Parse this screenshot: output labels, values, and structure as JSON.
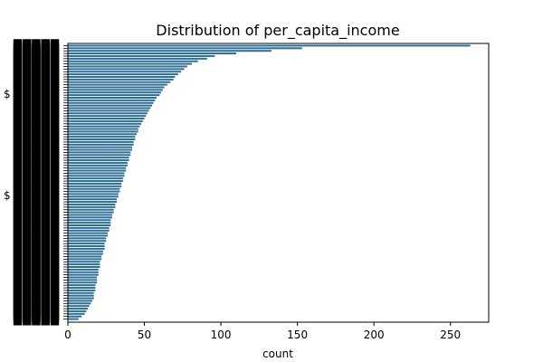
{
  "chart_data": {
    "type": "bar",
    "orientation": "horizontal",
    "title": "Distribution of per_capita_income",
    "xlabel": "count",
    "ylabel": "",
    "xlim": [
      0,
      275
    ],
    "x_ticks": [
      0,
      50,
      100,
      150,
      200,
      250
    ],
    "y_visible_labels": [
      "$",
      "$"
    ],
    "bar_color": "#2e6f96",
    "grid": false,
    "legend": "none",
    "values": [
      263,
      153,
      133,
      110,
      96,
      91,
      85,
      81,
      78,
      76,
      74,
      72,
      70,
      69,
      67,
      65,
      63,
      62,
      61,
      60,
      58,
      57,
      56,
      55,
      54,
      53,
      52,
      51,
      50,
      49,
      48,
      47,
      46,
      46,
      45,
      44,
      44,
      43,
      43,
      42,
      42,
      41,
      41,
      40,
      40,
      39,
      39,
      38,
      38,
      37,
      37,
      36,
      36,
      35,
      35,
      34,
      34,
      33,
      33,
      32,
      32,
      31,
      31,
      30,
      30,
      29,
      29,
      28,
      28,
      28,
      27,
      27,
      26,
      26,
      25,
      25,
      24,
      24,
      24,
      23,
      23,
      22,
      22,
      21,
      21,
      21,
      20,
      20,
      20,
      19,
      19,
      19,
      18,
      18,
      18,
      17,
      17,
      17,
      16,
      15,
      14,
      13,
      12,
      11,
      9,
      7
    ]
  }
}
